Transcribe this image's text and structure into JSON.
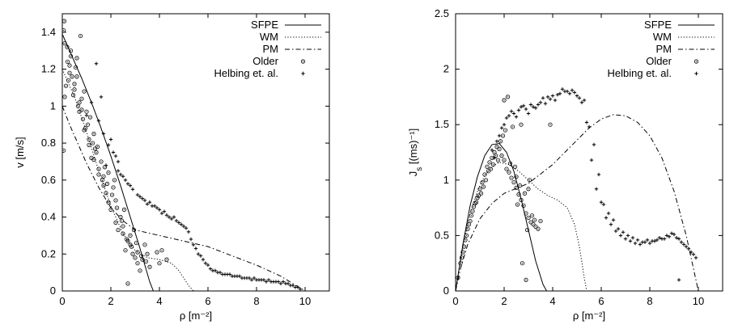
{
  "chart_data": [
    {
      "type": "scatter",
      "xlabel": "ρ [m⁻²]",
      "ylabel": "v [m/s]",
      "xlim": [
        0,
        11
      ],
      "ylim": [
        0,
        1.5
      ],
      "xticks": [
        0,
        2,
        4,
        6,
        8,
        10
      ],
      "yticks": [
        0,
        0.2,
        0.4,
        0.6,
        0.8,
        1,
        1.2,
        1.4
      ],
      "xtick_labels": [
        "0",
        "2",
        "4",
        "6",
        "8",
        "10"
      ],
      "ytick_labels": [
        "0",
        "0.2",
        "0.4",
        "0.6",
        "0.8",
        "1",
        "1.2",
        "1.4"
      ],
      "legend_position": "top-right",
      "grid": false,
      "series": [
        {
          "name": "SFPE",
          "kind": "line",
          "dash": "solid",
          "x": [
            0,
            0.4,
            0.8,
            1.2,
            1.6,
            2.0,
            2.4,
            2.8,
            3.2,
            3.6,
            3.75
          ],
          "y": [
            1.39,
            1.27,
            1.15,
            1.02,
            0.88,
            0.73,
            0.57,
            0.4,
            0.23,
            0.05,
            0
          ]
        },
        {
          "name": "WM",
          "kind": "line",
          "dash": "dotted",
          "x": [
            0,
            0.5,
            1.0,
            1.5,
            2.0,
            2.5,
            3.0,
            3.5,
            4.0,
            4.5,
            4.8,
            5.0,
            5.2,
            5.4
          ],
          "y": [
            1.2,
            1.05,
            0.86,
            0.65,
            0.46,
            0.31,
            0.22,
            0.18,
            0.17,
            0.15,
            0.11,
            0.07,
            0.03,
            0
          ]
        },
        {
          "name": "PM",
          "kind": "line",
          "dash": "dashdot",
          "x": [
            0,
            0.3,
            0.7,
            1.0,
            1.5,
            2.0,
            2.5,
            3.0,
            4.0,
            5.0,
            6.0,
            7.0,
            8.0,
            9.0,
            9.5,
            10.0
          ],
          "y": [
            1.0,
            0.9,
            0.78,
            0.69,
            0.56,
            0.45,
            0.38,
            0.33,
            0.3,
            0.27,
            0.24,
            0.19,
            0.14,
            0.08,
            0.04,
            0
          ]
        },
        {
          "name": "Older",
          "kind": "points",
          "marker": "circle",
          "x": [
            0.05,
            0.1,
            0.15,
            0.2,
            0.3,
            0.35,
            0.4,
            0.5,
            0.55,
            0.6,
            0.7,
            0.75,
            0.8,
            0.9,
            0.95,
            1.0,
            1.1,
            1.15,
            1.2,
            1.3,
            1.4,
            1.5,
            1.6,
            1.7,
            1.8,
            1.9,
            2.0,
            2.1,
            2.2,
            2.3,
            2.4,
            2.5,
            2.6,
            2.7,
            2.8,
            2.9,
            3.0,
            3.1,
            3.2,
            3.3,
            3.4,
            3.5,
            3.6,
            0.25,
            0.45,
            0.65,
            0.85,
            1.05,
            1.25,
            1.45,
            1.65,
            1.85,
            2.05,
            2.25,
            2.45,
            2.65,
            2.85,
            3.05,
            3.25,
            3.45,
            0.1,
            0.3,
            0.5,
            0.7,
            0.9,
            1.1,
            1.3,
            1.5,
            1.7,
            1.9,
            2.2,
            2.5,
            2.8,
            3.1,
            2.15,
            2.55,
            2.95,
            0.05,
            0.35,
            0.6,
            0.8,
            1.35,
            1.75,
            0.08,
            0.22
          ],
          "y": [
            0.76,
            1.05,
            1.11,
            1.32,
            1.18,
            1.27,
            1.16,
            1.12,
            1.21,
            1.26,
            1.02,
            1.38,
            0.98,
            1.08,
            0.88,
            0.97,
            0.82,
            0.94,
            0.72,
            0.85,
            0.75,
            0.66,
            0.7,
            0.62,
            0.53,
            0.64,
            0.44,
            0.56,
            0.49,
            0.33,
            0.4,
            0.35,
            0.22,
            0.27,
            0.3,
            0.2,
            0.18,
            0.15,
            0.11,
            0.17,
            0.25,
            0.2,
            0.13,
            1.14,
            1.06,
            1.0,
            0.93,
            0.9,
            0.8,
            0.78,
            0.6,
            0.58,
            0.52,
            0.45,
            0.38,
            0.28,
            0.24,
            0.26,
            0.19,
            0.16,
            1.34,
            1.22,
            1.09,
            0.97,
            0.87,
            0.79,
            0.71,
            0.63,
            0.57,
            0.48,
            0.37,
            0.31,
            0.25,
            0.21,
            0.6,
            0.44,
            0.33,
            1.41,
            1.3,
            1.16,
            1.04,
            0.77,
            0.67,
            1.46,
            1.24
          ],
          "extra": [
            [
              2.7,
              0.04
            ],
            [
              4.3,
              0.17
            ],
            [
              4.1,
              0.22
            ],
            [
              3.9,
              0.21
            ],
            [
              4.0,
              0.15
            ]
          ]
        },
        {
          "name": "Helbing et. al.",
          "kind": "points",
          "marker": "plus",
          "x": [
            1.7,
            1.9,
            2.1,
            2.3,
            2.5,
            2.7,
            2.9,
            3.1,
            3.3,
            3.5,
            3.7,
            3.9,
            4.1,
            4.3,
            4.5,
            4.7,
            4.9,
            5.1,
            5.3,
            5.5,
            5.7,
            5.9,
            6.1,
            6.3,
            6.5,
            6.7,
            6.9,
            7.1,
            7.3,
            7.5,
            7.7,
            7.9,
            8.1,
            8.3,
            8.5,
            8.7,
            8.9,
            9.1,
            9.3,
            9.5,
            9.7,
            1.4,
            1.6,
            2.0,
            2.2,
            2.6,
            2.8,
            3.2,
            3.4,
            3.6,
            3.8,
            4.0,
            4.2,
            4.4,
            4.6,
            4.8,
            5.0,
            5.2,
            5.4,
            5.6,
            5.8,
            6.0,
            6.2,
            6.4,
            6.6,
            6.8,
            7.0,
            7.2,
            7.4,
            7.6,
            7.8,
            8.0,
            8.2,
            8.4,
            8.6,
            8.8,
            9.0,
            9.2,
            9.4,
            9.6,
            9.8,
            1.8,
            2.4,
            2.3
          ],
          "y": [
            0.85,
            0.79,
            0.75,
            0.7,
            0.62,
            0.58,
            0.55,
            0.52,
            0.5,
            0.47,
            0.46,
            0.45,
            0.42,
            0.41,
            0.39,
            0.38,
            0.36,
            0.34,
            0.28,
            0.23,
            0.19,
            0.15,
            0.12,
            0.11,
            0.1,
            0.09,
            0.09,
            0.08,
            0.08,
            0.07,
            0.07,
            0.07,
            0.06,
            0.06,
            0.06,
            0.05,
            0.05,
            0.05,
            0.04,
            0.03,
            0.02,
            1.23,
            1.05,
            0.82,
            0.73,
            0.6,
            0.57,
            0.51,
            0.49,
            0.48,
            0.46,
            0.44,
            0.43,
            0.4,
            0.4,
            0.37,
            0.35,
            0.32,
            0.25,
            0.2,
            0.17,
            0.14,
            0.11,
            0.1,
            0.09,
            0.09,
            0.08,
            0.08,
            0.07,
            0.07,
            0.06,
            0.06,
            0.06,
            0.05,
            0.05,
            0.05,
            0.04,
            0.04,
            0.03,
            0.02,
            0.01,
            0.68,
            0.63,
            0.65
          ],
          "extra": [
            [
              1.2,
              1.02
            ],
            [
              1.0,
              0.95
            ],
            [
              1.5,
              0.92
            ]
          ]
        }
      ]
    },
    {
      "type": "scatter",
      "xlabel": "ρ [m⁻²]",
      "ylabel_main": "J",
      "ylabel_sub": "s",
      "ylabel_rest": " [(ms)⁻¹]",
      "xlim": [
        0,
        11
      ],
      "ylim": [
        0,
        2.5
      ],
      "xticks": [
        0,
        2,
        4,
        6,
        8,
        10
      ],
      "yticks": [
        0,
        0.5,
        1,
        1.5,
        2,
        2.5
      ],
      "xtick_labels": [
        "0",
        "2",
        "4",
        "6",
        "8",
        "10"
      ],
      "ytick_labels": [
        "0",
        "0.5",
        "1",
        "1.5",
        "2",
        "2.5"
      ],
      "legend_position": "top-right",
      "grid": false,
      "series": [
        {
          "name": "SFPE",
          "kind": "line",
          "dash": "solid",
          "x": [
            0,
            0.3,
            0.6,
            0.9,
            1.2,
            1.5,
            1.8,
            2.1,
            2.4,
            2.7,
            3.0,
            3.3,
            3.6,
            3.75
          ],
          "y": [
            0,
            0.42,
            0.77,
            1.03,
            1.22,
            1.32,
            1.33,
            1.25,
            1.08,
            0.83,
            0.55,
            0.27,
            0.06,
            0
          ]
        },
        {
          "name": "WM",
          "kind": "line",
          "dash": "dotted",
          "x": [
            0,
            0.3,
            0.6,
            0.9,
            1.2,
            1.5,
            1.8,
            2.2,
            2.6,
            3.0,
            3.4,
            3.8,
            4.2,
            4.6,
            4.9,
            5.1,
            5.3,
            5.4
          ],
          "y": [
            0,
            0.4,
            0.7,
            0.9,
            1.04,
            1.12,
            1.16,
            1.14,
            1.08,
            1.0,
            0.92,
            0.86,
            0.82,
            0.75,
            0.6,
            0.4,
            0.12,
            0
          ]
        },
        {
          "name": "PM",
          "kind": "line",
          "dash": "dashdot",
          "x": [
            0,
            0.2,
            0.5,
            1.0,
            1.5,
            2.0,
            3.0,
            4.0,
            5.0,
            5.5,
            6.0,
            6.5,
            7.0,
            7.5,
            8.0,
            8.5,
            9.0,
            9.5,
            10.0
          ],
          "y": [
            0,
            0.2,
            0.42,
            0.65,
            0.79,
            0.88,
            0.97,
            1.14,
            1.36,
            1.47,
            1.55,
            1.59,
            1.58,
            1.52,
            1.4,
            1.2,
            0.9,
            0.5,
            0
          ]
        },
        {
          "name": "Older",
          "kind": "points",
          "marker": "circle",
          "x": [
            0.1,
            0.2,
            0.3,
            0.4,
            0.5,
            0.6,
            0.7,
            0.8,
            0.9,
            1.0,
            1.1,
            1.2,
            1.3,
            1.4,
            1.5,
            1.6,
            1.7,
            1.8,
            1.9,
            2.0,
            2.1,
            2.2,
            2.3,
            2.4,
            2.5,
            2.6,
            2.7,
            2.8,
            2.9,
            3.0,
            3.1,
            3.2,
            3.3,
            3.4,
            3.5,
            0.25,
            0.45,
            0.65,
            0.85,
            1.05,
            1.25,
            1.45,
            1.65,
            1.85,
            2.05,
            2.25,
            2.45,
            2.65,
            2.85,
            3.05,
            3.25,
            0.35,
            0.55,
            0.75,
            0.95,
            1.15,
            1.35,
            1.55,
            1.75,
            1.95,
            2.15,
            2.35,
            2.55,
            2.75,
            2.95,
            3.15,
            2.0,
            2.7,
            3.9,
            3.0,
            2.9,
            2.5
          ],
          "y": [
            0.12,
            0.25,
            0.35,
            0.46,
            0.56,
            0.63,
            0.72,
            0.79,
            0.84,
            0.92,
            0.98,
            1.05,
            1.12,
            1.16,
            1.2,
            1.25,
            1.3,
            1.28,
            1.22,
            1.18,
            1.1,
            1.07,
            1.02,
            0.98,
            0.93,
            0.87,
            0.82,
            0.77,
            0.7,
            0.66,
            0.62,
            0.6,
            0.58,
            0.56,
            0.63,
            0.3,
            0.5,
            0.68,
            0.8,
            0.88,
            1.0,
            1.1,
            1.22,
            1.35,
            1.45,
            1.15,
            1.12,
            0.95,
            0.88,
            1.0,
            0.64,
            0.4,
            0.6,
            0.76,
            0.86,
            0.94,
            1.08,
            1.14,
            1.18,
            1.4,
            1.75,
            1.48,
            0.78,
            0.25,
            0.55,
            0.68,
            1.72,
            1.5,
            1.5,
            0.92,
            0.1,
            1.03
          ]
        },
        {
          "name": "Helbing et. al.",
          "kind": "points",
          "marker": "plus",
          "x": [
            1.5,
            1.7,
            1.9,
            2.1,
            2.3,
            2.5,
            2.7,
            2.9,
            3.1,
            3.3,
            3.5,
            3.7,
            3.9,
            4.1,
            4.3,
            4.5,
            4.7,
            4.9,
            5.1,
            5.3,
            5.5,
            5.7,
            5.9,
            6.1,
            6.3,
            6.5,
            6.7,
            6.9,
            7.1,
            7.3,
            7.5,
            7.7,
            7.9,
            8.1,
            8.3,
            8.5,
            8.7,
            8.9,
            9.1,
            9.3,
            9.5,
            9.7,
            9.9,
            1.6,
            1.8,
            2.0,
            2.2,
            2.4,
            2.6,
            2.8,
            3.0,
            3.2,
            3.4,
            3.6,
            3.8,
            4.0,
            4.2,
            4.4,
            4.6,
            4.8,
            5.0,
            5.2,
            5.4,
            5.6,
            5.8,
            6.0,
            6.2,
            6.4,
            6.6,
            6.8,
            7.0,
            7.2,
            7.4,
            7.6,
            7.8,
            8.0,
            8.2,
            8.4,
            8.6,
            8.8,
            9.0,
            9.2,
            9.4,
            9.6,
            9.8,
            9.2
          ],
          "y": [
            1.27,
            1.35,
            1.47,
            1.56,
            1.62,
            1.57,
            1.66,
            1.64,
            1.68,
            1.65,
            1.7,
            1.69,
            1.73,
            1.72,
            1.78,
            1.8,
            1.78,
            1.79,
            1.74,
            1.72,
            1.48,
            1.32,
            1.05,
            0.78,
            0.7,
            0.64,
            0.56,
            0.53,
            0.5,
            0.48,
            0.46,
            0.44,
            0.46,
            0.45,
            0.46,
            0.47,
            0.5,
            0.52,
            0.48,
            0.44,
            0.4,
            0.35,
            0.3,
            1.2,
            1.4,
            1.5,
            1.58,
            1.6,
            1.63,
            1.67,
            1.6,
            1.66,
            1.68,
            1.74,
            1.75,
            1.76,
            1.77,
            1.82,
            1.8,
            1.81,
            1.76,
            1.7,
            1.52,
            1.18,
            0.92,
            0.8,
            0.66,
            0.6,
            0.54,
            0.5,
            0.47,
            0.45,
            0.43,
            0.42,
            0.44,
            0.43,
            0.45,
            0.48,
            0.47,
            0.49,
            0.51,
            0.47,
            0.42,
            0.38,
            0.33,
            0.1
          ]
        }
      ]
    }
  ]
}
